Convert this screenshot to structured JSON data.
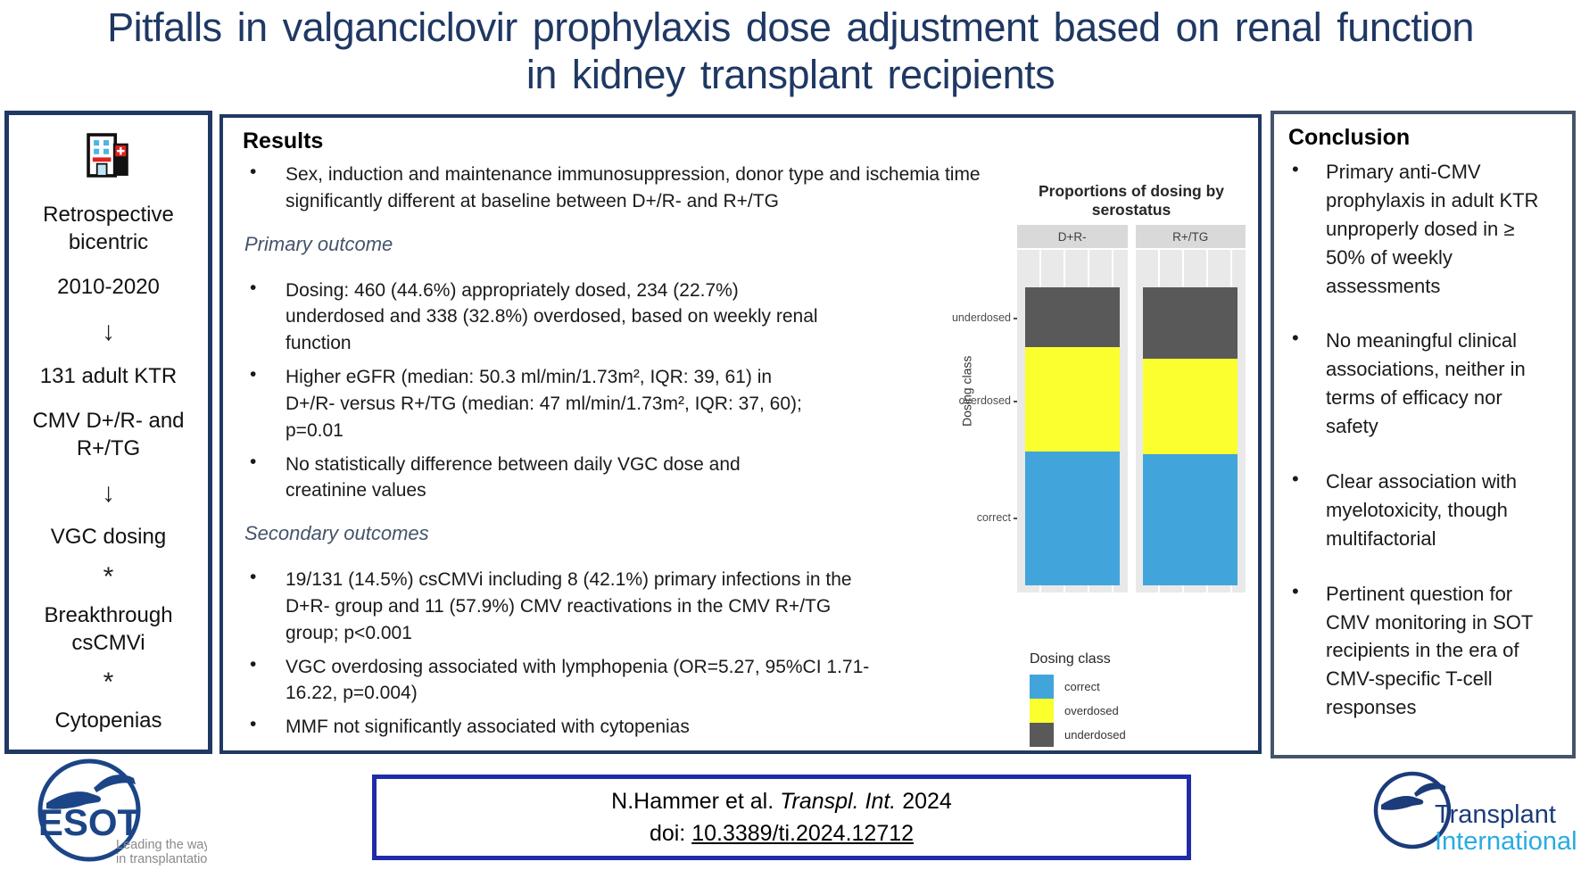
{
  "title": {
    "line1": "Pitfalls in valganciclovir prophylaxis dose adjustment based on renal function",
    "line2": "in kidney transplant recipients"
  },
  "study_panel": {
    "items": [
      {
        "text": "Retrospective bicentric"
      },
      {
        "text": "2010-2020"
      },
      {
        "text": "↓"
      },
      {
        "text": "131 adult KTR"
      },
      {
        "text": "CMV D+/R- and R+/TG"
      },
      {
        "text": "↓"
      },
      {
        "text": "VGC dosing"
      },
      {
        "text": "*"
      },
      {
        "text": "Breakthrough csCMVi"
      },
      {
        "text": "*"
      },
      {
        "text": "Cytopenias"
      }
    ]
  },
  "results_panel": {
    "heading": "Results",
    "baseline_bullet": "Sex, induction and maintenance immunosuppression, donor type and ischemia time significantly different at baseline between D+/R- and R+/TG",
    "primary_label": "Primary outcome",
    "primary_bullets": [
      "Dosing: 460 (44.6%) appropriately dosed, 234 (22.7%) underdosed and 338 (32.8%) overdosed, based on weekly renal function",
      "Higher eGFR (median: 50.3 ml/min/1.73m², IQR: 39, 61) in D+/R- versus R+/TG (median: 47 ml/min/1.73m², IQR: 37, 60); p=0.01",
      "No statistically difference between daily VGC dose and creatinine values"
    ],
    "secondary_label": "Secondary outcomes",
    "secondary_bullets": [
      "19/131 (14.5%) csCMVi including 8 (42.1%) primary infections in the D+R- group and 11 (57.9%) CMV reactivations in the CMV R+/TG group; p<0.001",
      "VGC overdosing associated with lymphopenia (OR=5.27, 95%CI 1.71-16.22, p=0.004)",
      "MMF not significantly associated with cytopenias"
    ]
  },
  "chart_data": {
    "type": "bar",
    "stacked": true,
    "unit": "proportion_percent",
    "title": "Proportions of dosing by serostatus",
    "ylabel": "Dosing class",
    "yticks": [
      "underdosed",
      "overdosed",
      "correct"
    ],
    "categories": [
      "correct",
      "overdosed",
      "underdosed"
    ],
    "series": [
      {
        "name": "D+R-",
        "values": {
          "underdosed": 20,
          "overdosed": 35,
          "correct": 45
        }
      },
      {
        "name": "R+/TG",
        "values": {
          "underdosed": 24,
          "overdosed": 32,
          "correct": 44
        }
      }
    ],
    "colors": {
      "correct": "#41a5db",
      "overdosed": "#fbff2d",
      "underdosed": "#595959"
    },
    "legend_title": "Dosing class",
    "legend_position": "bottom-right",
    "grid": "vertical-white-on-gray"
  },
  "conclusion_panel": {
    "heading": "Conclusion",
    "bullets": [
      "Primary anti-CMV prophylaxis in adult KTR unproperly dosed in ≥ 50% of weekly assessments",
      "No meaningful clinical associations, neither in terms of efficacy nor safety",
      "Clear association with myelotoxicity, though multifactorial",
      "Pertinent question for CMV monitoring in SOT recipients in the era of CMV-specific T-cell responses"
    ]
  },
  "citation": {
    "authors": "N.Hammer et al.",
    "journal": "Transpl. Int.",
    "year": "2024",
    "doi_label": "doi:",
    "doi": "10.3389/ti.2024.12712"
  },
  "logos": {
    "esot": {
      "name": "ESOT",
      "tagline_line1": "Leading the way",
      "tagline_line2": "in transplantation"
    },
    "transplant_international": {
      "line1": "Transplant",
      "line2": "International"
    }
  },
  "colors": {
    "title_navy": "#1f3864",
    "panel_border_navy": "#1f3864",
    "conclusion_border": "#44546a",
    "citation_border": "#1f2ca8",
    "outcome_label": "#44546a",
    "esot_blue": "#1c4587",
    "ti_light_blue": "#29abe2"
  }
}
